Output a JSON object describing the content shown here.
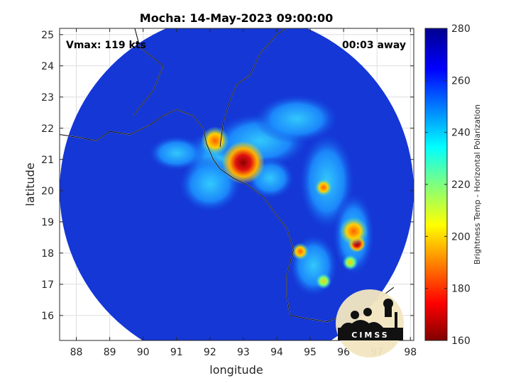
{
  "chart_data": {
    "type": "heatmap",
    "title": "Mocha: 14-May-2023 09:00:00",
    "xlabel": "longitude",
    "ylabel": "latitude",
    "xlim": [
      87.5,
      98.1
    ],
    "ylim": [
      15.2,
      25.2
    ],
    "xticks": [
      88,
      89,
      90,
      91,
      92,
      93,
      94,
      95,
      96,
      97,
      98
    ],
    "yticks": [
      16,
      17,
      18,
      19,
      20,
      21,
      22,
      23,
      24,
      25
    ],
    "grid": true,
    "annotations": {
      "vmax": "Vmax: 119 kts",
      "timing": "00:03 away"
    },
    "colorbar": {
      "label": "Brightness Temp - Horizontal Polarization",
      "range": [
        160,
        280
      ],
      "ticks": [
        160,
        180,
        200,
        220,
        240,
        260,
        280
      ],
      "colormap": "jet-reversed"
    },
    "swath": {
      "center_lon": 92.8,
      "center_lat": 20.0,
      "radius_deg": 5.3
    },
    "features": [
      {
        "lon": 93.0,
        "lat": 20.9,
        "value": 165
      },
      {
        "lon": 92.15,
        "lat": 21.6,
        "value": 200
      },
      {
        "lon": 95.4,
        "lat": 20.1,
        "value": 205
      },
      {
        "lon": 96.4,
        "lat": 18.3,
        "value": 180
      },
      {
        "lon": 96.3,
        "lat": 18.7,
        "value": 195
      },
      {
        "lon": 94.7,
        "lat": 18.05,
        "value": 205
      },
      {
        "lon": 96.2,
        "lat": 17.7,
        "value": 210
      },
      {
        "lon": 95.4,
        "lat": 17.1,
        "value": 215
      }
    ]
  },
  "logo": {
    "text": "CIMSS"
  },
  "colors": {
    "background_field": "#1437d6",
    "cold_core": "#8b0000"
  }
}
